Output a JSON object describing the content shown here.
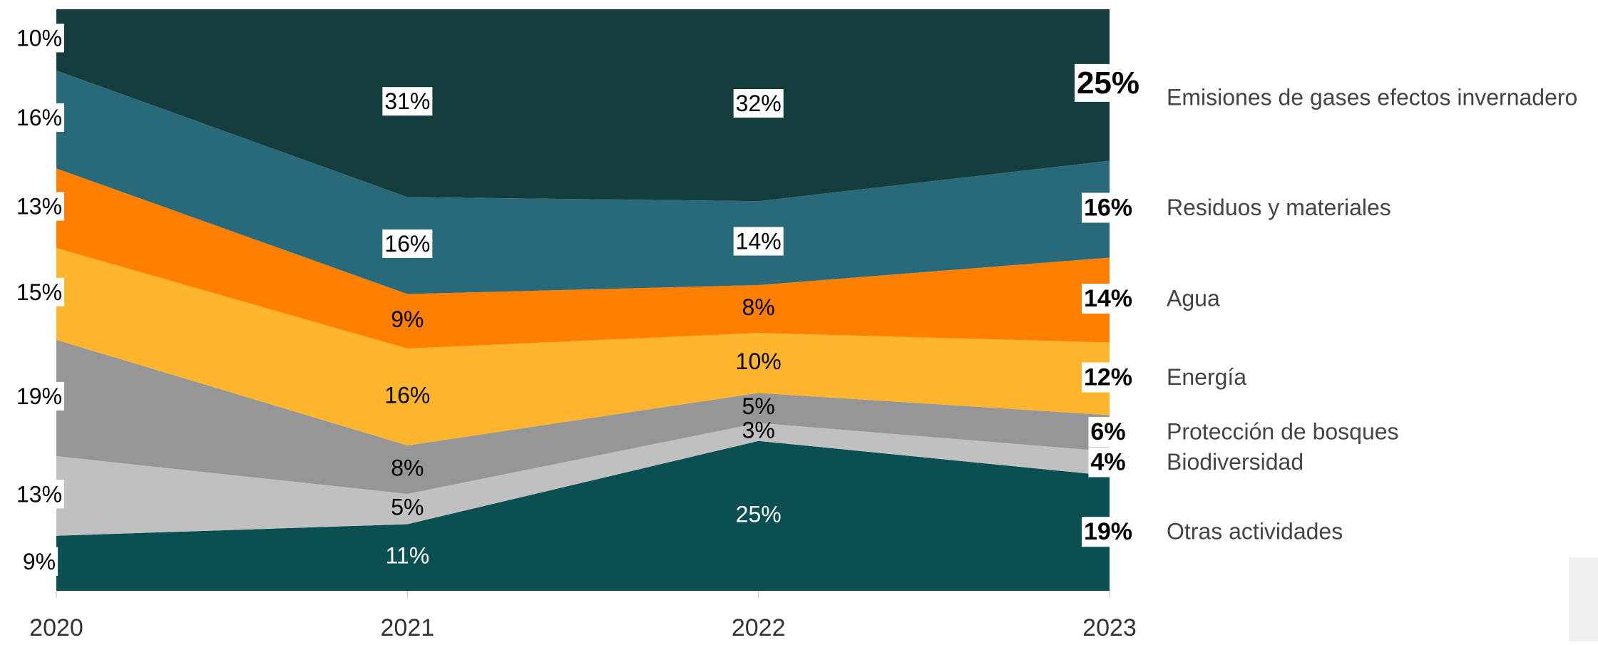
{
  "chart_data": {
    "type": "stacked_area_100",
    "x": [
      "2020",
      "2021",
      "2022",
      "2023"
    ],
    "series": [
      {
        "name": "Otras actividades",
        "color": "#0a4f52",
        "values": [
          9,
          11,
          25,
          19
        ]
      },
      {
        "name": "Biodiversidad",
        "color": "#c0c0c0",
        "values": [
          13,
          5,
          3,
          4
        ]
      },
      {
        "name": "Protección de bosques",
        "color": "#969696",
        "values": [
          19,
          8,
          5,
          6
        ]
      },
      {
        "name": "Energía",
        "color": "#ffb52e",
        "values": [
          15,
          16,
          10,
          12
        ]
      },
      {
        "name": "Agua",
        "color": "#ff7f00",
        "values": [
          13,
          9,
          8,
          14
        ]
      },
      {
        "name": "Residuos y materiales",
        "color": "#286a7a",
        "values": [
          16,
          16,
          14,
          16
        ]
      },
      {
        "name": "Emisiones de gases efectos invernadero",
        "color": "#153d3d",
        "values": [
          10,
          31,
          32,
          25
        ]
      }
    ],
    "value_labels": [
      [
        "9%",
        "11%",
        "25%",
        "19%"
      ],
      [
        "13%",
        "5%",
        "3%",
        "4%"
      ],
      [
        "19%",
        "8%",
        "5%",
        "6%"
      ],
      [
        "15%",
        "16%",
        "10%",
        "12%"
      ],
      [
        "13%",
        "9%",
        "8%",
        "14%"
      ],
      [
        "16%",
        "16%",
        "14%",
        "16%"
      ],
      [
        "10%",
        "31%",
        "32%",
        "25%"
      ]
    ]
  }
}
